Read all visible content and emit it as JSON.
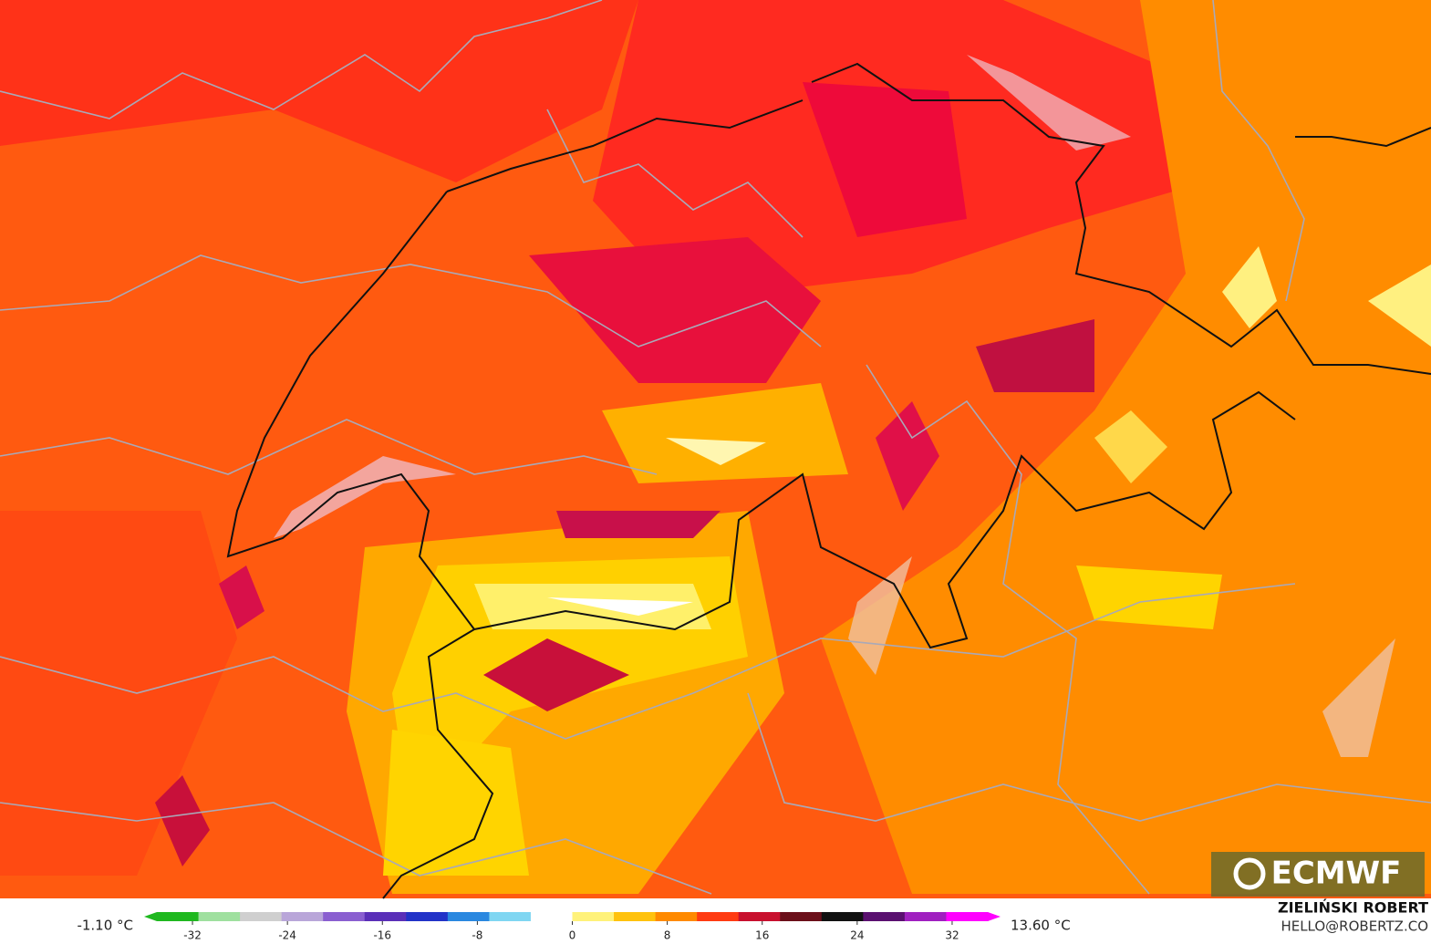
{
  "map": {
    "logo": "ECMWF",
    "colorbar": {
      "min_label": "-1.10 °C",
      "max_label": "13.60 °C",
      "unit_range": [
        -35,
        35
      ],
      "ticks": [
        -32,
        -24,
        -16,
        -8,
        0,
        8,
        16,
        24,
        32
      ],
      "colors": [
        "#1fb81f",
        "#9fe09f",
        "#cfcfcf",
        "#b9a6d9",
        "#8a5fd0",
        "#5a2fb8",
        "#2233c8",
        "#2a88e0",
        "#7fd6f2",
        "#ffffff",
        "#fff27a",
        "#ffc20e",
        "#ff8a00",
        "#ff3b12",
        "#c8102e",
        "#6b0f1a",
        "#111111",
        "#5a1070",
        "#a020c0",
        "#ff00ff"
      ]
    },
    "credit": {
      "name": "ZIELIŃSKI ROBERT",
      "email": "HELLO@ROBERTZ.CO"
    }
  }
}
